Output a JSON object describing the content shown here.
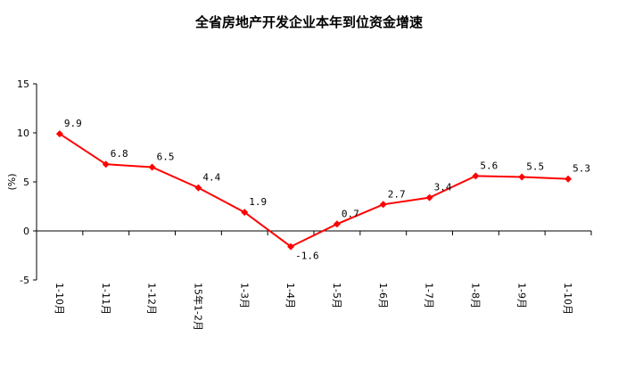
{
  "chart_data": {
    "type": "line",
    "title": "全省房地产开发企业本年到位资金增速",
    "ylabel": "(%)",
    "xlabel": "",
    "ylim": [
      -5,
      15
    ],
    "yticks": [
      -5,
      0,
      5,
      10,
      15
    ],
    "categories": [
      "1-10月",
      "1-11月",
      "1-12月",
      "15年1-2月",
      "1-3月",
      "1-4月",
      "1-5月",
      "1-6月",
      "1-7月",
      "1-8月",
      "1-9月",
      "1-10月"
    ],
    "series": [
      {
        "values": [
          9.9,
          6.8,
          6.5,
          4.4,
          1.9,
          -1.6,
          0.7,
          2.7,
          3.4,
          5.6,
          5.5,
          5.3
        ],
        "labels": [
          "9.9",
          "6.8",
          "6.5",
          "4.4",
          "1.9",
          "-1.6",
          "0.7",
          "2.7",
          "3.4",
          "5.6",
          "5.5",
          "5.3"
        ],
        "color": "#ff0000",
        "marker": "diamond"
      }
    ],
    "grid": false,
    "legend": "none"
  }
}
